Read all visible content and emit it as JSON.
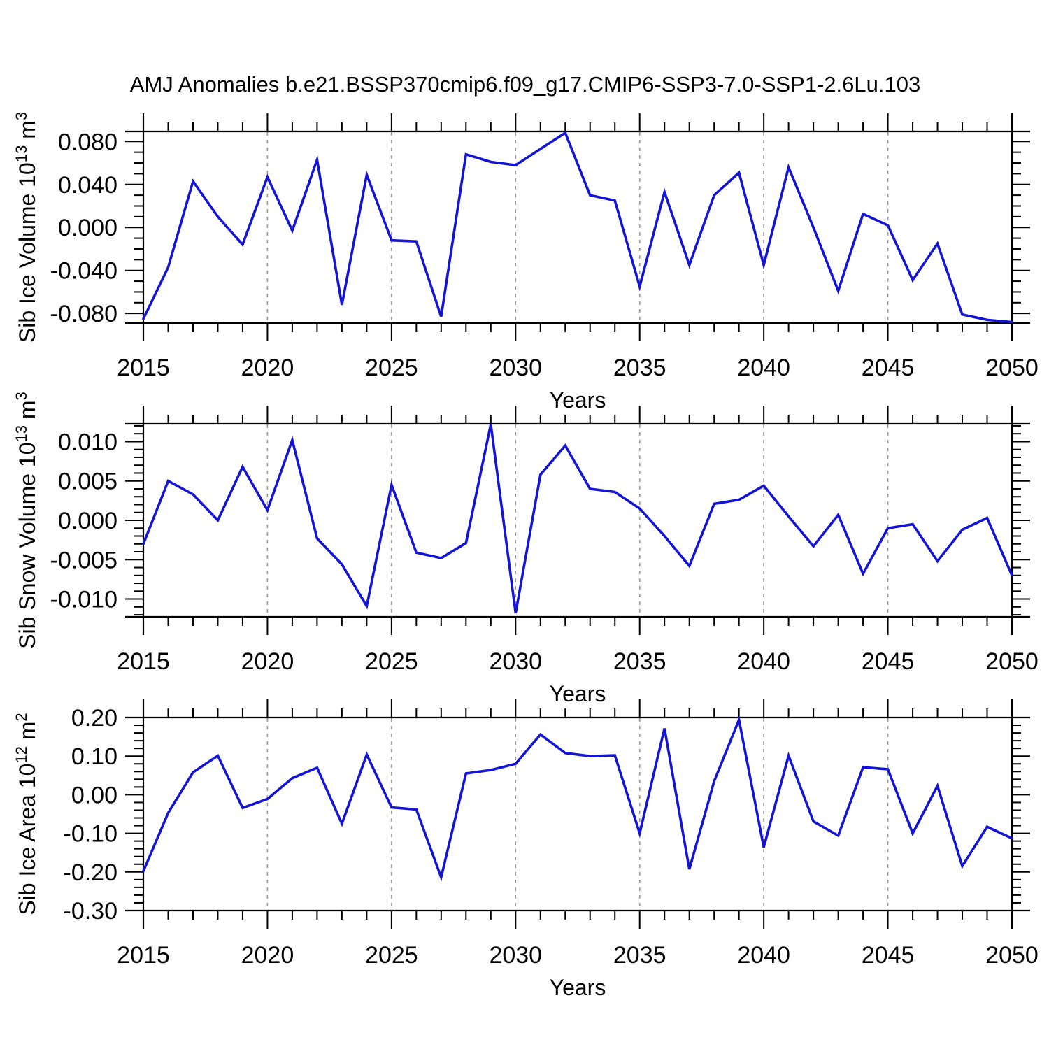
{
  "title": "AMJ Anomalies b.e21.BSSP370cmip6.f09_g17.CMIP6-SSP3-7.0-SSP1-2.6Lu.103",
  "colors": {
    "line": "#1414d7",
    "axis": "#000000",
    "grid": "#9a9a9a",
    "text": "#000000",
    "background": "#ffffff"
  },
  "x_axis": {
    "label": "Years",
    "range": [
      2015,
      2050
    ],
    "ticks": [
      2015,
      2020,
      2025,
      2030,
      2035,
      2040,
      2045,
      2050
    ],
    "minor_step": 1,
    "grid_years": [
      2020,
      2025,
      2030,
      2035,
      2040,
      2045
    ]
  },
  "chart_data": [
    {
      "type": "line",
      "ylabel": "Sib Ice Volume 10^13 m^3",
      "ylabel_parts": [
        {
          "text": "Sib Ice Volume 10"
        },
        {
          "text": "13",
          "sup": true
        },
        {
          "text": " m"
        },
        {
          "text": "3",
          "sup": true
        }
      ],
      "xlabel": "Years",
      "legend": "none",
      "grid": "vertical-dashed",
      "x": [
        2015,
        2016,
        2017,
        2018,
        2019,
        2020,
        2021,
        2022,
        2023,
        2024,
        2025,
        2026,
        2027,
        2028,
        2029,
        2030,
        2031,
        2032,
        2033,
        2034,
        2035,
        2036,
        2037,
        2038,
        2039,
        2040,
        2041,
        2042,
        2043,
        2044,
        2045,
        2046,
        2047,
        2048,
        2049,
        2050
      ],
      "y": [
        -0.085,
        -0.037,
        0.043,
        0.01,
        -0.016,
        0.047,
        -0.003,
        0.063,
        -0.072,
        0.049,
        -0.012,
        -0.013,
        -0.083,
        0.068,
        0.061,
        0.058,
        0.073,
        0.088,
        0.03,
        0.025,
        -0.055,
        0.033,
        -0.035,
        0.03,
        0.051,
        -0.035,
        0.056,
        0.0,
        -0.059,
        0.0125,
        0.002,
        -0.049,
        -0.015,
        -0.081,
        -0.086,
        -0.088
      ],
      "ylim": [
        -0.089,
        0.0893
      ],
      "yticks": [
        {
          "v": 0.08,
          "label": "0.080"
        },
        {
          "v": 0.04,
          "label": "0.040"
        },
        {
          "v": 0.0,
          "label": "0.000"
        },
        {
          "v": -0.04,
          "label": "-0.040"
        },
        {
          "v": -0.08,
          "label": "-0.080"
        }
      ],
      "y_minor_step": 0.01
    },
    {
      "type": "line",
      "ylabel": "Sib Snow Volume 10^13 m^3",
      "ylabel_parts": [
        {
          "text": "Sib Snow Volume 10"
        },
        {
          "text": "13",
          "sup": true
        },
        {
          "text": " m"
        },
        {
          "text": "3",
          "sup": true
        }
      ],
      "xlabel": "Years",
      "legend": "none",
      "grid": "vertical-dashed",
      "x": [
        2015,
        2016,
        2017,
        2018,
        2019,
        2020,
        2021,
        2022,
        2023,
        2024,
        2025,
        2026,
        2027,
        2028,
        2029,
        2030,
        2031,
        2032,
        2033,
        2034,
        2035,
        2036,
        2037,
        2038,
        2039,
        2040,
        2041,
        2042,
        2043,
        2044,
        2045,
        2046,
        2047,
        2048,
        2049,
        2050
      ],
      "y": [
        -0.003,
        0.005,
        0.0033,
        0.0,
        0.0068,
        0.0013,
        0.0102,
        -0.0023,
        -0.0056,
        -0.0109,
        0.0045,
        -0.0041,
        -0.0048,
        -0.0029,
        0.0122,
        -0.0118,
        0.0058,
        0.0095,
        0.004,
        0.0036,
        0.0015,
        -0.002,
        -0.0058,
        0.0021,
        0.0026,
        0.0044,
        0.0005,
        -0.0033,
        0.0007,
        -0.0068,
        -0.001,
        -0.0005,
        -0.0052,
        -0.0012,
        0.0003,
        -0.007
      ],
      "ylim": [
        -0.01226,
        0.01226
      ],
      "yticks": [
        {
          "v": 0.01,
          "label": "0.010"
        },
        {
          "v": 0.005,
          "label": "0.005"
        },
        {
          "v": 0.0,
          "label": "0.000"
        },
        {
          "v": -0.005,
          "label": "-0.005"
        },
        {
          "v": -0.01,
          "label": "-0.010"
        }
      ],
      "y_minor_step": 0.001
    },
    {
      "type": "line",
      "ylabel": "Sib Ice Area 10^12 m^2",
      "ylabel_parts": [
        {
          "text": "Sib Ice Area 10"
        },
        {
          "text": "12",
          "sup": true
        },
        {
          "text": " m"
        },
        {
          "text": "2",
          "sup": true
        }
      ],
      "xlabel": "Years",
      "legend": "none",
      "grid": "vertical-dashed",
      "x": [
        2015,
        2016,
        2017,
        2018,
        2019,
        2020,
        2021,
        2022,
        2023,
        2024,
        2025,
        2026,
        2027,
        2028,
        2029,
        2030,
        2031,
        2032,
        2033,
        2034,
        2035,
        2036,
        2037,
        2038,
        2039,
        2040,
        2041,
        2042,
        2043,
        2044,
        2045,
        2046,
        2047,
        2048,
        2049,
        2050
      ],
      "y": [
        -0.198,
        -0.047,
        0.058,
        0.101,
        -0.034,
        -0.011,
        0.043,
        0.07,
        -0.075,
        0.104,
        -0.033,
        -0.038,
        -0.214,
        0.055,
        0.064,
        0.08,
        0.156,
        0.108,
        0.1,
        0.102,
        -0.1,
        0.172,
        -0.193,
        0.035,
        0.194,
        -0.136,
        0.101,
        -0.069,
        -0.106,
        0.071,
        0.066,
        -0.1,
        0.023,
        -0.185,
        -0.083,
        -0.113
      ],
      "ylim": [
        -0.3,
        0.2
      ],
      "yticks": [
        {
          "v": 0.2,
          "label": "0.20"
        },
        {
          "v": 0.1,
          "label": "0.10"
        },
        {
          "v": 0.0,
          "label": "0.00"
        },
        {
          "v": -0.1,
          "label": "-0.10"
        },
        {
          "v": -0.2,
          "label": "-0.20"
        },
        {
          "v": -0.3,
          "label": "-0.30"
        }
      ],
      "y_minor_step": 0.02
    }
  ]
}
